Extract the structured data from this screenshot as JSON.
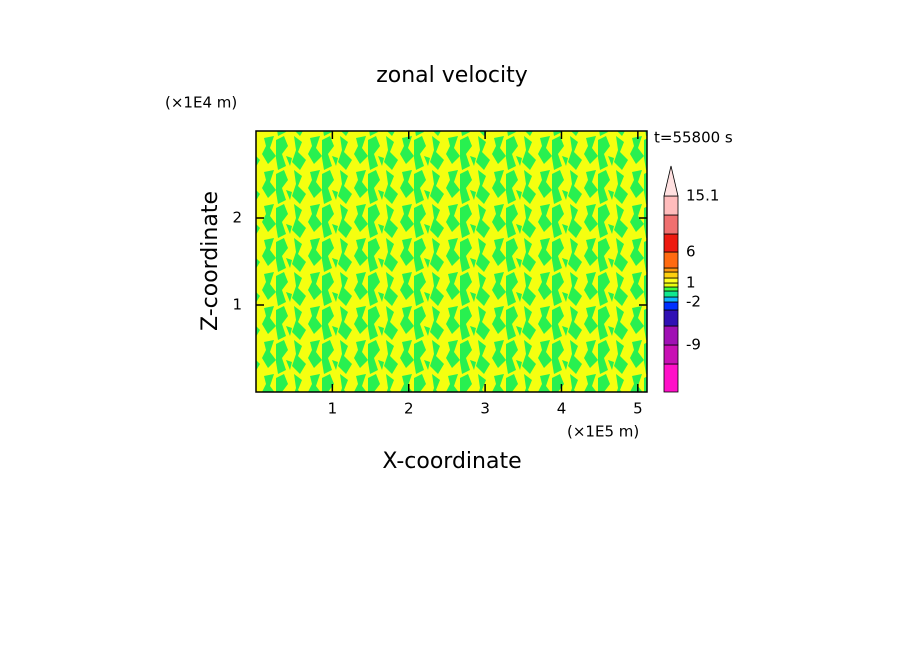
{
  "chart_data": {
    "type": "contour",
    "title": "zonal velocity",
    "xlabel": "X-coordinate",
    "ylabel": "Z-coordinate",
    "x_unit": "(×1E5 m)",
    "y_unit": "(×1E4 m)",
    "time_label": "t=55800 s",
    "xlim": [
      0,
      5.12
    ],
    "xticks": [
      1,
      2,
      3,
      4,
      5
    ],
    "ylim": [
      0,
      3
    ],
    "yticks": [
      1,
      2
    ],
    "colorbar": {
      "levels": [
        null,
        -9,
        null,
        null,
        -2,
        null,
        null,
        null,
        1,
        null,
        null,
        null,
        6,
        null,
        null,
        15.1
      ],
      "colors": [
        "#ff10c8",
        "#c810b4",
        "#a010b4",
        "#3010b4",
        "#0030ff",
        "#10b4ff",
        "#10e890",
        "#40ff40",
        "#e8ff10",
        "#ffff20",
        "#ffd010",
        "#ff9a10",
        "#ff6a10",
        "#ee1a10",
        "#f07070",
        "#ffbcbc"
      ],
      "extend_color": "#ffe0e0"
    }
  }
}
